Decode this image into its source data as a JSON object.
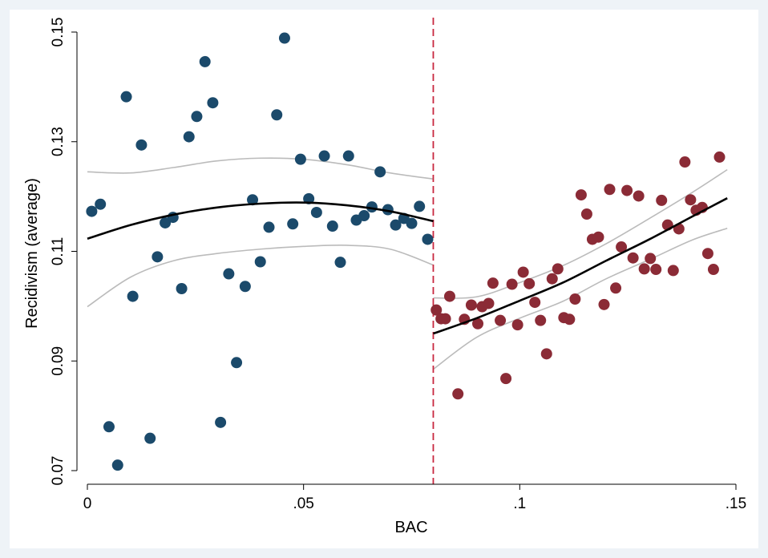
{
  "chart_data": {
    "type": "scatter",
    "title": "",
    "xlabel": "BAC",
    "ylabel": "Recidivism (average)",
    "xlim": [
      0,
      0.15
    ],
    "ylim": [
      0.07,
      0.15
    ],
    "x_ticks": [
      {
        "value": 0,
        "label": "0"
      },
      {
        "value": 0.05,
        "label": ".05"
      },
      {
        "value": 0.1,
        "label": ".1"
      },
      {
        "value": 0.15,
        "label": ".15"
      }
    ],
    "y_ticks": [
      {
        "value": 0.07,
        "label": "0.07"
      },
      {
        "value": 0.09,
        "label": "0.09"
      },
      {
        "value": 0.11,
        "label": "0.11"
      },
      {
        "value": 0.13,
        "label": "0.13"
      },
      {
        "value": 0.15,
        "label": "0.15"
      }
    ],
    "cutoff": 0.08,
    "grid": false,
    "legend": "none",
    "colors": {
      "below_points": "#1b4a6b",
      "above_points": "#8b2b36",
      "fit_line": "#000000",
      "ci_line": "#bbbbbb",
      "cutoff_line": "#c8273f",
      "plot_background": "#ffffff",
      "outer_background": "#eef3f7"
    },
    "series": [
      {
        "values": [
          [
            0.001,
            0.1173
          ],
          [
            0.003,
            0.1186
          ],
          [
            0.005,
            0.078
          ],
          [
            0.007,
            0.071
          ],
          [
            0.009,
            0.1382
          ],
          [
            0.0105,
            0.1018
          ],
          [
            0.0125,
            0.1294
          ],
          [
            0.0145,
            0.0759
          ],
          [
            0.0162,
            0.109
          ],
          [
            0.018,
            0.1152
          ],
          [
            0.0198,
            0.1162
          ],
          [
            0.0218,
            0.1032
          ],
          [
            0.0235,
            0.1309
          ],
          [
            0.0253,
            0.1346
          ],
          [
            0.0272,
            0.1446
          ],
          [
            0.029,
            0.1371
          ],
          [
            0.0308,
            0.0788
          ],
          [
            0.0327,
            0.1059
          ],
          [
            0.0345,
            0.0897
          ],
          [
            0.0365,
            0.1036
          ],
          [
            0.0382,
            0.1194
          ],
          [
            0.04,
            0.1081
          ],
          [
            0.042,
            0.1144
          ],
          [
            0.0438,
            0.1349
          ],
          [
            0.0456,
            0.1489
          ],
          [
            0.0475,
            0.115
          ],
          [
            0.0493,
            0.1268
          ],
          [
            0.0512,
            0.1196
          ],
          [
            0.053,
            0.1171
          ],
          [
            0.0548,
            0.1274
          ],
          [
            0.0567,
            0.1146
          ],
          [
            0.0585,
            0.108
          ],
          [
            0.0604,
            0.1274
          ],
          [
            0.0622,
            0.1157
          ],
          [
            0.064,
            0.1165
          ],
          [
            0.0658,
            0.1181
          ],
          [
            0.0677,
            0.1245
          ],
          [
            0.0695,
            0.1176
          ],
          [
            0.0713,
            0.1148
          ],
          [
            0.0732,
            0.116
          ],
          [
            0.075,
            0.1151
          ],
          [
            0.0768,
            0.1182
          ],
          [
            0.0787,
            0.1122
          ]
        ],
        "fit_x": [
          0.0,
          0.01,
          0.02,
          0.03,
          0.04,
          0.05,
          0.06,
          0.07,
          0.08
        ],
        "fit_y": [
          0.1123,
          0.1148,
          0.1167,
          0.118,
          0.1187,
          0.1189,
          0.1184,
          0.1173,
          0.1155
        ],
        "ci_upper": [
          0.1245,
          0.1243,
          0.1253,
          0.1265,
          0.127,
          0.1268,
          0.1258,
          0.1243,
          0.1232
        ],
        "ci_lower": [
          0.0999,
          0.1053,
          0.1083,
          0.1096,
          0.1104,
          0.1109,
          0.1111,
          0.1104,
          0.1075
        ]
      },
      {
        "values": [
          [
            0.0807,
            0.0993
          ],
          [
            0.0818,
            0.0977
          ],
          [
            0.0828,
            0.0977
          ],
          [
            0.0838,
            0.1018
          ],
          [
            0.0857,
            0.084
          ],
          [
            0.0872,
            0.0976
          ],
          [
            0.0888,
            0.1002
          ],
          [
            0.0903,
            0.0968
          ],
          [
            0.0913,
            0.0999
          ],
          [
            0.0928,
            0.1005
          ],
          [
            0.0938,
            0.1042
          ],
          [
            0.0955,
            0.0974
          ],
          [
            0.0968,
            0.0868
          ],
          [
            0.0982,
            0.104
          ],
          [
            0.0995,
            0.0966
          ],
          [
            0.1008,
            0.1062
          ],
          [
            0.1022,
            0.1041
          ],
          [
            0.1035,
            0.1007
          ],
          [
            0.1048,
            0.0974
          ],
          [
            0.1062,
            0.0913
          ],
          [
            0.1075,
            0.105
          ],
          [
            0.1088,
            0.1068
          ],
          [
            0.1102,
            0.0979
          ],
          [
            0.1115,
            0.0976
          ],
          [
            0.1128,
            0.1013
          ],
          [
            0.1142,
            0.1203
          ],
          [
            0.1155,
            0.1168
          ],
          [
            0.1168,
            0.1122
          ],
          [
            0.1182,
            0.1126
          ],
          [
            0.1195,
            0.1003
          ],
          [
            0.1208,
            0.1213
          ],
          [
            0.1222,
            0.1033
          ],
          [
            0.1235,
            0.1108
          ],
          [
            0.1248,
            0.1211
          ],
          [
            0.1262,
            0.1088
          ],
          [
            0.1275,
            0.1201
          ],
          [
            0.1288,
            0.1068
          ],
          [
            0.1302,
            0.1087
          ],
          [
            0.1315,
            0.1067
          ],
          [
            0.1328,
            0.1193
          ],
          [
            0.1342,
            0.1148
          ],
          [
            0.1355,
            0.1065
          ],
          [
            0.1368,
            0.1141
          ],
          [
            0.1382,
            0.1263
          ],
          [
            0.1395,
            0.1194
          ],
          [
            0.1408,
            0.1175
          ],
          [
            0.1422,
            0.118
          ],
          [
            0.1435,
            0.1096
          ],
          [
            0.1448,
            0.1067
          ],
          [
            0.1462,
            0.1272
          ]
        ],
        "fit_x": [
          0.08,
          0.09,
          0.1,
          0.11,
          0.12,
          0.13,
          0.14,
          0.148
        ],
        "fit_y": [
          0.095,
          0.0978,
          0.101,
          0.1043,
          0.1083,
          0.1122,
          0.1164,
          0.1197
        ],
        "ci_upper": [
          0.1015,
          0.1017,
          0.1043,
          0.1074,
          0.1114,
          0.116,
          0.1208,
          0.1249
        ],
        "ci_lower": [
          0.0885,
          0.0943,
          0.0978,
          0.1009,
          0.105,
          0.1085,
          0.1121,
          0.1142
        ]
      }
    ]
  }
}
